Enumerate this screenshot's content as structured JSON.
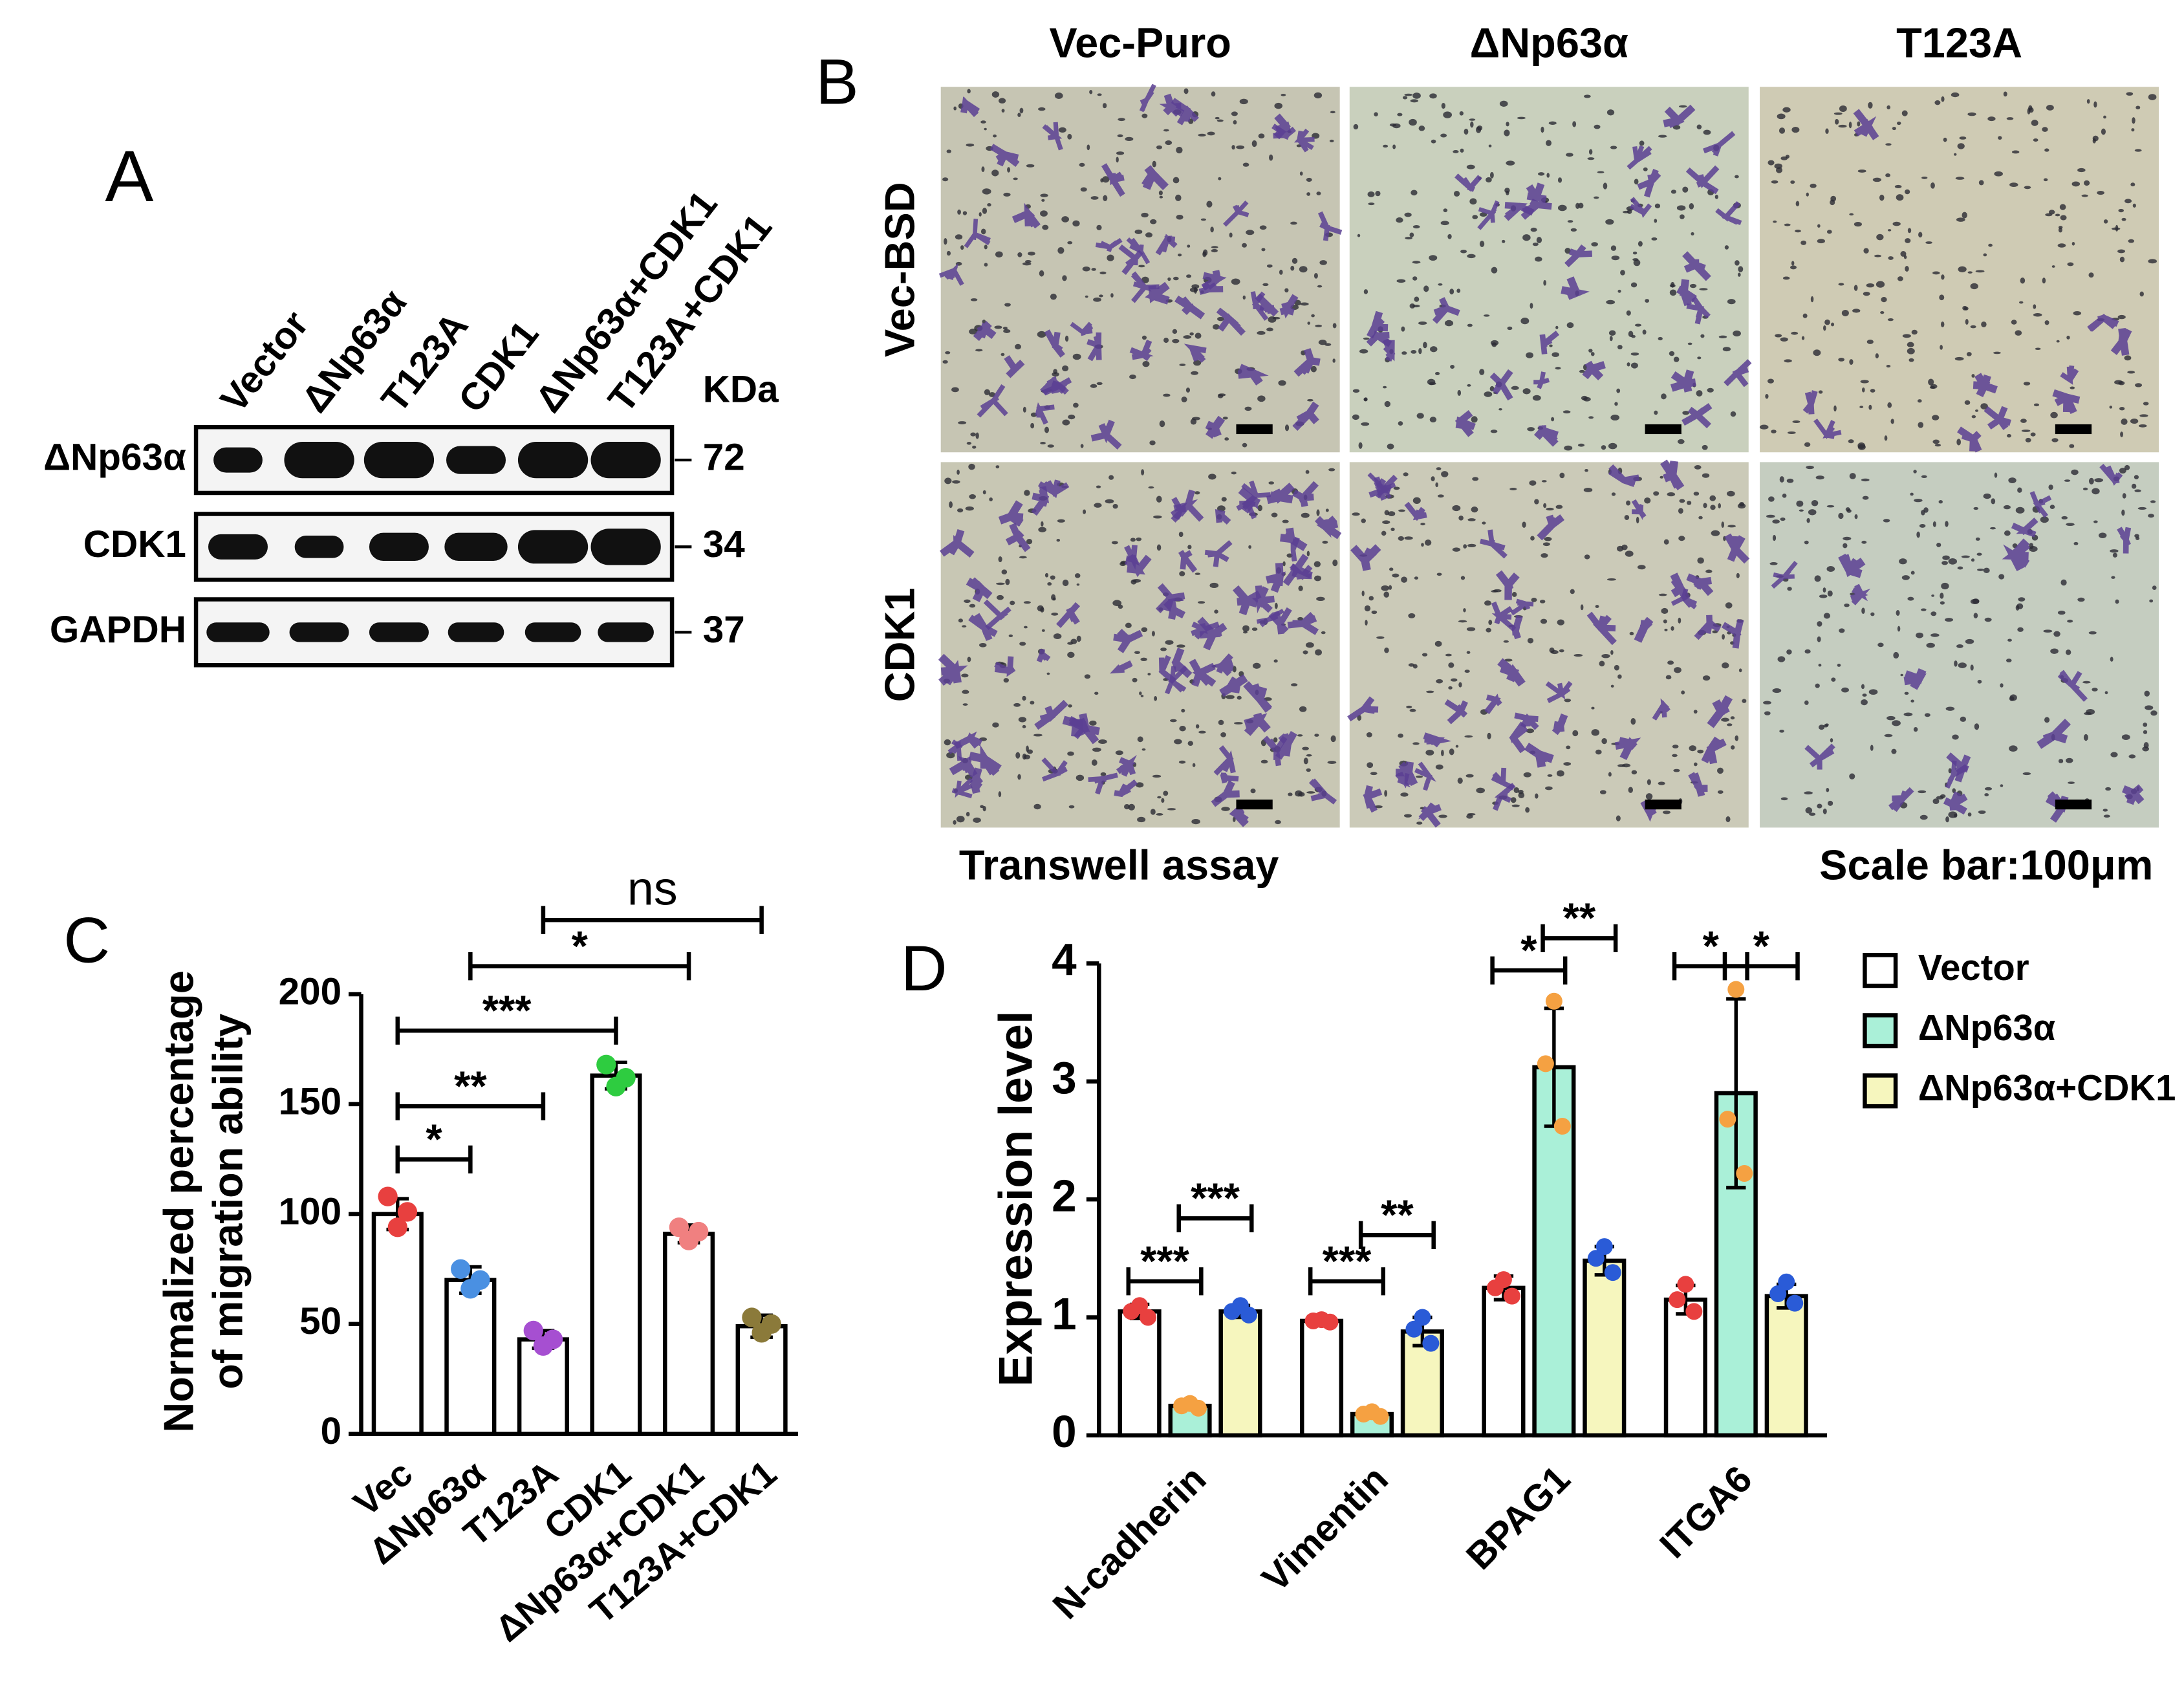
{
  "panel_a": {
    "label": "A",
    "lanes": [
      "Vector",
      "ΔNp63α",
      "T123A",
      "CDK1",
      "ΔNp63α+CDK1",
      "T123A+CDK1"
    ],
    "unit": "KDa",
    "rows": [
      {
        "name": "ΔNp63α",
        "size": "72"
      },
      {
        "name": "CDK1",
        "size": "34"
      },
      {
        "name": "GAPDH",
        "size": "37"
      }
    ]
  },
  "panel_b": {
    "label": "B",
    "columns": [
      "Vec-Puro",
      "ΔNp63α",
      "T123A"
    ],
    "rows": [
      "Vec-BSD",
      "CDK1"
    ],
    "caption": "Transwell assay",
    "scale_note": "Scale bar:100μm"
  },
  "chart_data": [
    {
      "type": "bar",
      "panel": "C",
      "ylabel": [
        "Normalized percentage",
        "of migration ability"
      ],
      "categories": [
        "Vec",
        "ΔNp63α",
        "T123A",
        "CDK1",
        "ΔNp63α+CDK1",
        "T123A+CDK1"
      ],
      "values": [
        100,
        70,
        43,
        163,
        91,
        49
      ],
      "errors": [
        7,
        6,
        4,
        6,
        4,
        5
      ],
      "points": [
        [
          108,
          101,
          94
        ],
        [
          75,
          70,
          66
        ],
        [
          47,
          43,
          40
        ],
        [
          168,
          162,
          158
        ],
        [
          94,
          92,
          88
        ],
        [
          53,
          50,
          46
        ]
      ],
      "point_colors": [
        "#e8403f",
        "#4a90e2",
        "#a64fd1",
        "#2ecc40",
        "#f08080",
        "#8b7a3a"
      ],
      "color": "#ffffff",
      "ylim": [
        0,
        200
      ],
      "yticks": [
        0,
        50,
        100,
        150,
        200
      ],
      "brackets": [
        {
          "between": [
            "Vec",
            "ΔNp63α"
          ],
          "label": "*"
        },
        {
          "between": [
            "Vec",
            "T123A"
          ],
          "label": "**"
        },
        {
          "between": [
            "Vec",
            "CDK1"
          ],
          "label": "***"
        },
        {
          "between": [
            "ΔNp63α",
            "ΔNp63α+CDK1"
          ],
          "label": "*"
        },
        {
          "between": [
            "T123A",
            "T123A+CDK1"
          ],
          "label": "ns"
        }
      ]
    },
    {
      "type": "grouped_bar",
      "panel": "D",
      "ylabel": "Expression level",
      "categories": [
        "N-cadherin",
        "Vimentin",
        "BPAG1",
        "ITGA6"
      ],
      "series": [
        {
          "name": "Vector",
          "color": "#ffffff",
          "point_color": "#e8403f",
          "values": [
            1.05,
            0.97,
            1.25,
            1.15
          ],
          "errors": [
            0.06,
            0.02,
            0.1,
            0.12
          ],
          "points": [
            [
              1.1,
              1.05,
              1.0
            ],
            [
              0.98,
              0.97,
              0.96
            ],
            [
              1.32,
              1.25,
              1.18
            ],
            [
              1.28,
              1.15,
              1.05
            ]
          ]
        },
        {
          "name": "ΔNp63α",
          "color": "#aaf0d8",
          "point_color": "#f5a142",
          "values": [
            0.25,
            0.18,
            3.12,
            2.9
          ],
          "errors": [
            0.02,
            0.02,
            0.5,
            0.8
          ],
          "points": [
            [
              0.27,
              0.25,
              0.23
            ],
            [
              0.2,
              0.18,
              0.16
            ],
            [
              3.68,
              3.15,
              2.62
            ],
            [
              3.78,
              2.68,
              2.22
            ]
          ]
        },
        {
          "name": "ΔNp63α+CDK1",
          "color": "#f6f6be",
          "point_color": "#2a5bd7",
          "values": [
            1.05,
            0.88,
            1.48,
            1.18
          ],
          "errors": [
            0.05,
            0.12,
            0.12,
            0.1
          ],
          "points": [
            [
              1.1,
              1.05,
              1.02
            ],
            [
              1.0,
              0.9,
              0.78
            ],
            [
              1.6,
              1.5,
              1.38
            ],
            [
              1.3,
              1.2,
              1.12
            ]
          ]
        }
      ],
      "ylim": [
        0,
        4
      ],
      "yticks": [
        0,
        1,
        2,
        3,
        4
      ],
      "brackets": [
        {
          "category": "N-cadherin",
          "between": [
            "Vector",
            "ΔNp63α"
          ],
          "label": "***"
        },
        {
          "category": "N-cadherin",
          "between": [
            "ΔNp63α",
            "ΔNp63α+CDK1"
          ],
          "label": "***"
        },
        {
          "category": "Vimentin",
          "between": [
            "Vector",
            "ΔNp63α"
          ],
          "label": "***"
        },
        {
          "category": "Vimentin",
          "between": [
            "ΔNp63α",
            "ΔNp63α+CDK1"
          ],
          "label": "**"
        },
        {
          "category": "BPAG1",
          "between": [
            "Vector",
            "ΔNp63α"
          ],
          "label": "*"
        },
        {
          "category": "BPAG1",
          "between": [
            "ΔNp63α",
            "ΔNp63α+CDK1"
          ],
          "label": "**"
        },
        {
          "category": "ITGA6",
          "between": [
            "Vector",
            "ΔNp63α"
          ],
          "label": "*"
        },
        {
          "category": "ITGA6",
          "between": [
            "ΔNp63α",
            "ΔNp63α+CDK1"
          ],
          "label": "*"
        }
      ]
    }
  ]
}
